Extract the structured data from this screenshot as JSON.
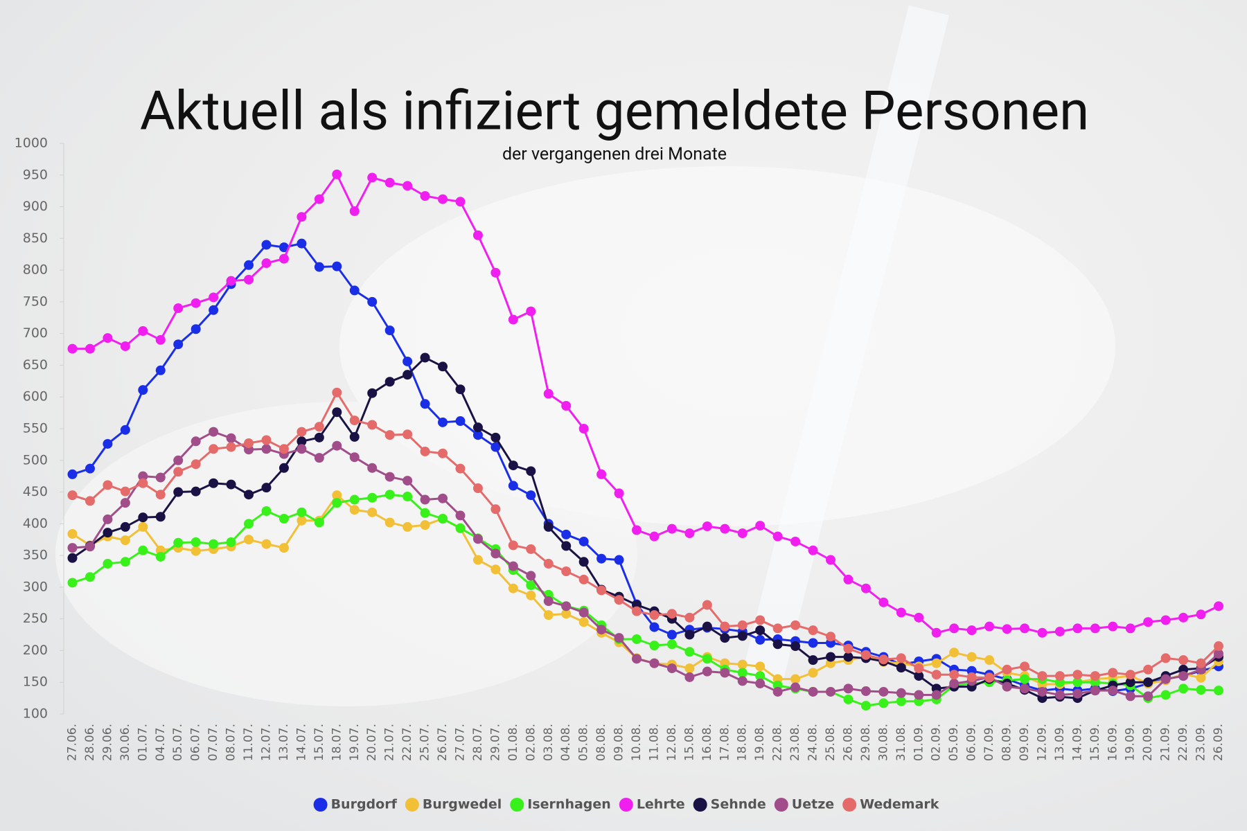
{
  "chart_data": {
    "type": "line",
    "title": "Aktuell als infiziert gemeldete Personen",
    "subtitle": "der vergangenen drei Monate",
    "categories": [
      "27.06.",
      "28.06.",
      "29.06.",
      "30.06.",
      "01.07.",
      "04.07.",
      "05.07.",
      "06.07.",
      "07.07.",
      "08.07.",
      "11.07.",
      "12.07.",
      "13.07.",
      "14.07.",
      "15.07.",
      "18.07.",
      "19.07.",
      "20.07.",
      "21.07.",
      "22.07.",
      "25.07.",
      "26.07.",
      "27.07.",
      "28.07.",
      "29.07.",
      "01.08.",
      "02.08.",
      "03.08.",
      "04.08.",
      "05.08.",
      "08.08.",
      "09.08.",
      "10.08.",
      "11.08.",
      "12.08.",
      "15.08.",
      "16.08.",
      "17.08.",
      "18.08.",
      "19.08.",
      "22.08.",
      "23.08.",
      "24.08.",
      "25.08.",
      "26.08.",
      "29.08.",
      "30.08.",
      "31.08.",
      "01.09.",
      "02.09.",
      "05.09.",
      "06.09.",
      "07.09.",
      "08.09.",
      "09.09.",
      "12.09.",
      "13.09.",
      "14.09.",
      "15.09.",
      "16.09.",
      "19.09.",
      "20.09.",
      "21.09.",
      "22.09.",
      "23.09.",
      "26.09."
    ],
    "ylim": [
      100,
      1000
    ],
    "yticks": [
      100,
      150,
      200,
      250,
      300,
      350,
      400,
      450,
      500,
      550,
      600,
      650,
      700,
      750,
      800,
      850,
      900,
      950,
      1000
    ],
    "legend": "bottom",
    "series": [
      {
        "name": "Burgdorf",
        "color": "#1a2ee8",
        "values": [
          478,
          487,
          526,
          548,
          611,
          642,
          683,
          707,
          737,
          778,
          808,
          840,
          836,
          842,
          805,
          806,
          768,
          750,
          705,
          656,
          589,
          560,
          562,
          540,
          521,
          460,
          445,
          400,
          383,
          372,
          345,
          343,
          273,
          237,
          225,
          233,
          236,
          234,
          230,
          217,
          218,
          215,
          212,
          212,
          208,
          198,
          190,
          178,
          183,
          187,
          170,
          168,
          162,
          155,
          145,
          137,
          140,
          137,
          140,
          136,
          140,
          148,
          155,
          160,
          168,
          175
        ]
      },
      {
        "name": "Burgwedel",
        "color": "#f2c037",
        "values": [
          384,
          366,
          380,
          374,
          395,
          358,
          362,
          357,
          360,
          364,
          375,
          368,
          362,
          405,
          405,
          445,
          422,
          418,
          402,
          395,
          398,
          408,
          393,
          343,
          328,
          298,
          287,
          256,
          258,
          245,
          228,
          213,
          188,
          180,
          178,
          172,
          190,
          180,
          178,
          175,
          155,
          155,
          165,
          180,
          185,
          190,
          182,
          180,
          175,
          180,
          197,
          190,
          185,
          165,
          160,
          147,
          147,
          150,
          155,
          157,
          160,
          148,
          153,
          163,
          157,
          183
        ]
      },
      {
        "name": "Isernhagen",
        "color": "#38f01a",
        "values": [
          307,
          316,
          337,
          340,
          358,
          348,
          370,
          371,
          368,
          371,
          400,
          420,
          408,
          418,
          402,
          433,
          438,
          441,
          446,
          443,
          417,
          408,
          393,
          377,
          360,
          327,
          303,
          288,
          270,
          263,
          240,
          218,
          218,
          208,
          210,
          198,
          187,
          170,
          165,
          160,
          145,
          140,
          135,
          135,
          123,
          113,
          117,
          120,
          120,
          123,
          145,
          148,
          150,
          153,
          155,
          155,
          150,
          150,
          150,
          148,
          145,
          125,
          130,
          140,
          138,
          137
        ]
      },
      {
        "name": "Lehrte",
        "color": "#f01ff0",
        "values": [
          676,
          676,
          693,
          680,
          704,
          690,
          740,
          748,
          757,
          783,
          785,
          811,
          818,
          884,
          912,
          951,
          893,
          946,
          938,
          933,
          917,
          912,
          908,
          855,
          796,
          722,
          735,
          605,
          586,
          550,
          478,
          448,
          390,
          380,
          392,
          385,
          396,
          392,
          385,
          397,
          380,
          372,
          358,
          343,
          312,
          298,
          276,
          260,
          252,
          228,
          235,
          232,
          238,
          234,
          235,
          228,
          230,
          235,
          235,
          238,
          235,
          245,
          248,
          252,
          257,
          270
        ]
      },
      {
        "name": "Sehnde",
        "color": "#1a1244",
        "values": [
          346,
          365,
          386,
          395,
          410,
          411,
          450,
          451,
          464,
          462,
          446,
          457,
          488,
          530,
          536,
          576,
          537,
          606,
          624,
          635,
          662,
          648,
          612,
          552,
          536,
          492,
          483,
          395,
          365,
          340,
          296,
          285,
          272,
          262,
          250,
          225,
          238,
          220,
          223,
          232,
          210,
          207,
          185,
          190,
          190,
          188,
          183,
          173,
          160,
          140,
          143,
          143,
          155,
          148,
          138,
          125,
          127,
          125,
          137,
          145,
          150,
          150,
          160,
          170,
          172,
          190
        ]
      },
      {
        "name": "Uetze",
        "color": "#a04d8a",
        "values": [
          362,
          364,
          407,
          433,
          475,
          473,
          500,
          530,
          545,
          535,
          517,
          518,
          510,
          518,
          504,
          523,
          505,
          488,
          474,
          468,
          438,
          440,
          413,
          376,
          353,
          333,
          318,
          278,
          270,
          260,
          233,
          220,
          187,
          180,
          172,
          158,
          167,
          165,
          152,
          148,
          135,
          142,
          135,
          135,
          140,
          136,
          135,
          133,
          130,
          130,
          148,
          152,
          158,
          143,
          140,
          135,
          130,
          132,
          137,
          137,
          128,
          128,
          155,
          160,
          170,
          195
        ]
      },
      {
        "name": "Wedemark",
        "color": "#e56a6a",
        "values": [
          445,
          436,
          461,
          451,
          464,
          446,
          482,
          494,
          518,
          521,
          527,
          532,
          518,
          545,
          553,
          607,
          563,
          556,
          540,
          541,
          514,
          511,
          487,
          456,
          423,
          366,
          360,
          337,
          325,
          312,
          295,
          280,
          262,
          256,
          258,
          252,
          272,
          238,
          240,
          248,
          235,
          240,
          232,
          222,
          203,
          193,
          186,
          188,
          172,
          162,
          162,
          158,
          157,
          170,
          175,
          160,
          160,
          162,
          160,
          165,
          162,
          170,
          188,
          185,
          180,
          207
        ]
      }
    ]
  }
}
